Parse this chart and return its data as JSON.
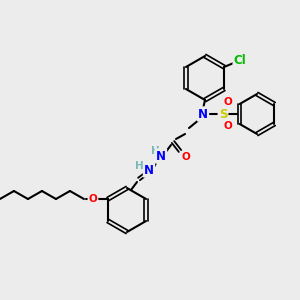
{
  "bg_color": "#ececec",
  "bond_color": "#000000",
  "bond_lw": 1.5,
  "atom_colors": {
    "N": "#0000ff",
    "O": "#ff0000",
    "S": "#cccc00",
    "Cl": "#00bb00",
    "H": "#7ab8b8",
    "C": "#000000"
  },
  "font_size": 7.5,
  "fig_size": [
    3.0,
    3.0
  ],
  "dpi": 100
}
